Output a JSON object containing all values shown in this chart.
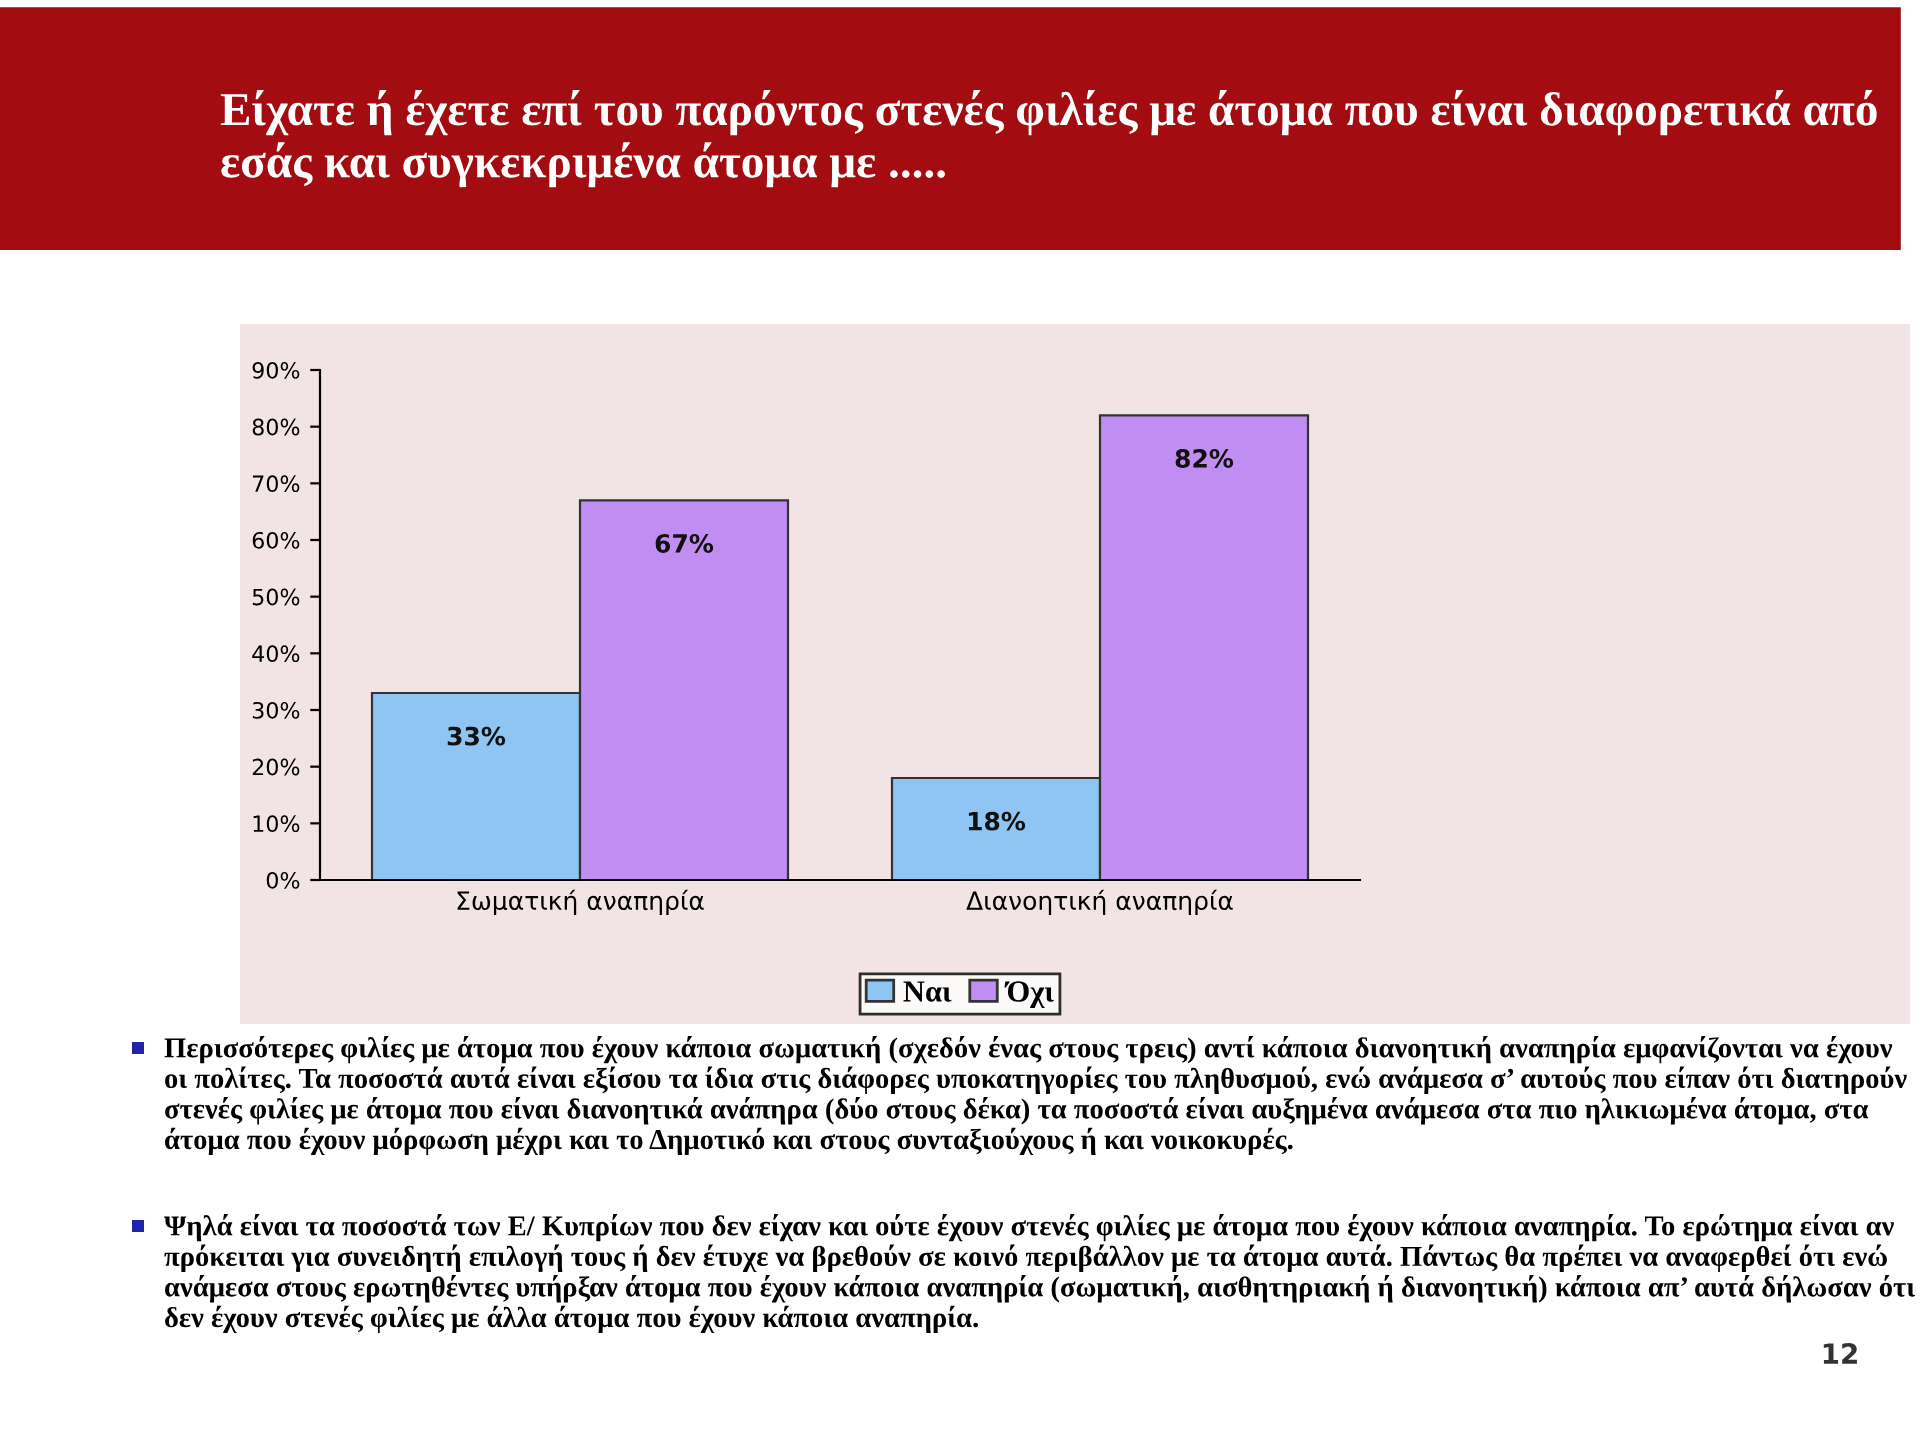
{
  "chart_data": {
    "type": "bar",
    "title": "Είχατε ή έχετε επί του παρόντος στενές φιλίες με άτομα που είναι διαφορετικά από εσάς και συγκεκριμένα άτομα με .....",
    "categories": [
      "Σωματική αναπηρία",
      "Διανοητική αναπηρία"
    ],
    "series": [
      {
        "name": "Ναι",
        "color": "#8ec5f2",
        "values": [
          33,
          18
        ],
        "value_labels": [
          "33%",
          "18%"
        ]
      },
      {
        "name": "Όχι",
        "color": "#c08ef2",
        "values": [
          67,
          82
        ],
        "value_labels": [
          "67%",
          "82%"
        ]
      }
    ],
    "ylim": [
      0,
      90
    ],
    "yticks": [
      {
        "value": 0,
        "label": "0%"
      },
      {
        "value": 10,
        "label": "10%"
      },
      {
        "value": 20,
        "label": "20%"
      },
      {
        "value": 30,
        "label": "30%"
      },
      {
        "value": 40,
        "label": "40%"
      },
      {
        "value": 50,
        "label": "50%"
      },
      {
        "value": 60,
        "label": "60%"
      },
      {
        "value": 70,
        "label": "70%"
      },
      {
        "value": 80,
        "label": "80%"
      },
      {
        "value": 90,
        "label": "90%"
      }
    ],
    "legend": "bottom",
    "annotations": [
      "Περισσότερες φιλίες με άτομα που έχουν κάποια σωματική (σχεδόν ένας στους τρεις) αντί κάποια διανοητική αναπηρία εμφανίζονται να έχουν οι πολίτες. Τα ποσοστά αυτά είναι εξίσου τα ίδια στις διάφορες υποκατηγορίες του πληθυσμού, ενώ ανάμεσα σ’ αυτούς που είπαν ότι διατηρούν στενές φιλίες με άτομα που είναι διανοητικά ανάπηρα (δύο στους δέκα) τα ποσοστά είναι αυξημένα ανάμεσα στα πιο ηλικιωμένα άτομα, στα άτομα που έχουν μόρφωση μέχρι και το Δημοτικό και στους συνταξιούχους ή και νοικοκυρές.",
      "Ψηλά είναι τα ποσοστά των Ε/ Κυπρίων που δεν είχαν και ούτε έχουν στενές φιλίες με άτομα που έχουν κάποια αναπηρία. Το ερώτημα είναι αν πρόκειται για συνειδητή επιλογή τους ή δεν έτυχε να βρεθούν σε κοινό περιβάλλον με τα άτομα αυτά. Πάντως θα πρέπει να αναφερθεί ότι ενώ ανάμεσα στους ερωτηθέντες υπήρξαν άτομα που έχουν κάποια αναπηρία (σωματική, αισθητηριακή ή διανοητική) κάποια απ’ αυτά δήλωσαν ότι δεν έχουν στενές φιλίες με άλλα άτομα που έχουν κάποια αναπηρία.",
      "12"
    ]
  }
}
